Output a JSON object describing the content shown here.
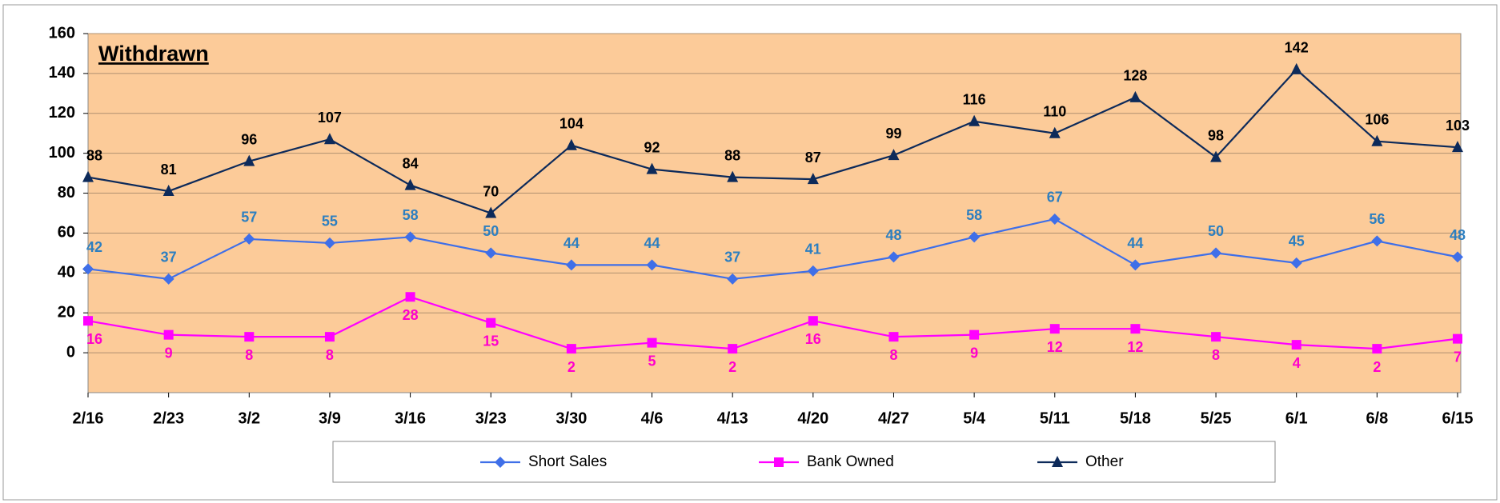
{
  "chart_data": {
    "type": "line",
    "title": "Withdrawn",
    "categories": [
      "2/16",
      "2/23",
      "3/2",
      "3/9",
      "3/16",
      "3/23",
      "3/30",
      "4/6",
      "4/13",
      "4/20",
      "4/27",
      "5/4",
      "5/11",
      "5/18",
      "5/25",
      "6/1",
      "6/8",
      "6/15"
    ],
    "series": [
      {
        "name": "Short Sales",
        "color": "#3f6fe8",
        "marker": "diamond",
        "values": [
          42,
          37,
          57,
          55,
          58,
          50,
          44,
          44,
          37,
          41,
          48,
          58,
          67,
          44,
          50,
          45,
          56,
          48
        ]
      },
      {
        "name": "Bank Owned",
        "color": "#ff00ff",
        "marker": "square",
        "values": [
          16,
          9,
          8,
          8,
          28,
          15,
          2,
          5,
          2,
          16,
          8,
          9,
          12,
          12,
          8,
          4,
          2,
          7
        ]
      },
      {
        "name": "Other",
        "color": "#0d2a5a",
        "marker": "triangle",
        "values": [
          88,
          81,
          96,
          107,
          84,
          70,
          104,
          92,
          88,
          87,
          99,
          116,
          110,
          128,
          98,
          142,
          106,
          103
        ]
      }
    ],
    "ylim": [
      -20,
      160
    ],
    "yticks": [
      0,
      20,
      40,
      60,
      80,
      100,
      120,
      140,
      160
    ],
    "grid": true,
    "legend": "bottom"
  }
}
